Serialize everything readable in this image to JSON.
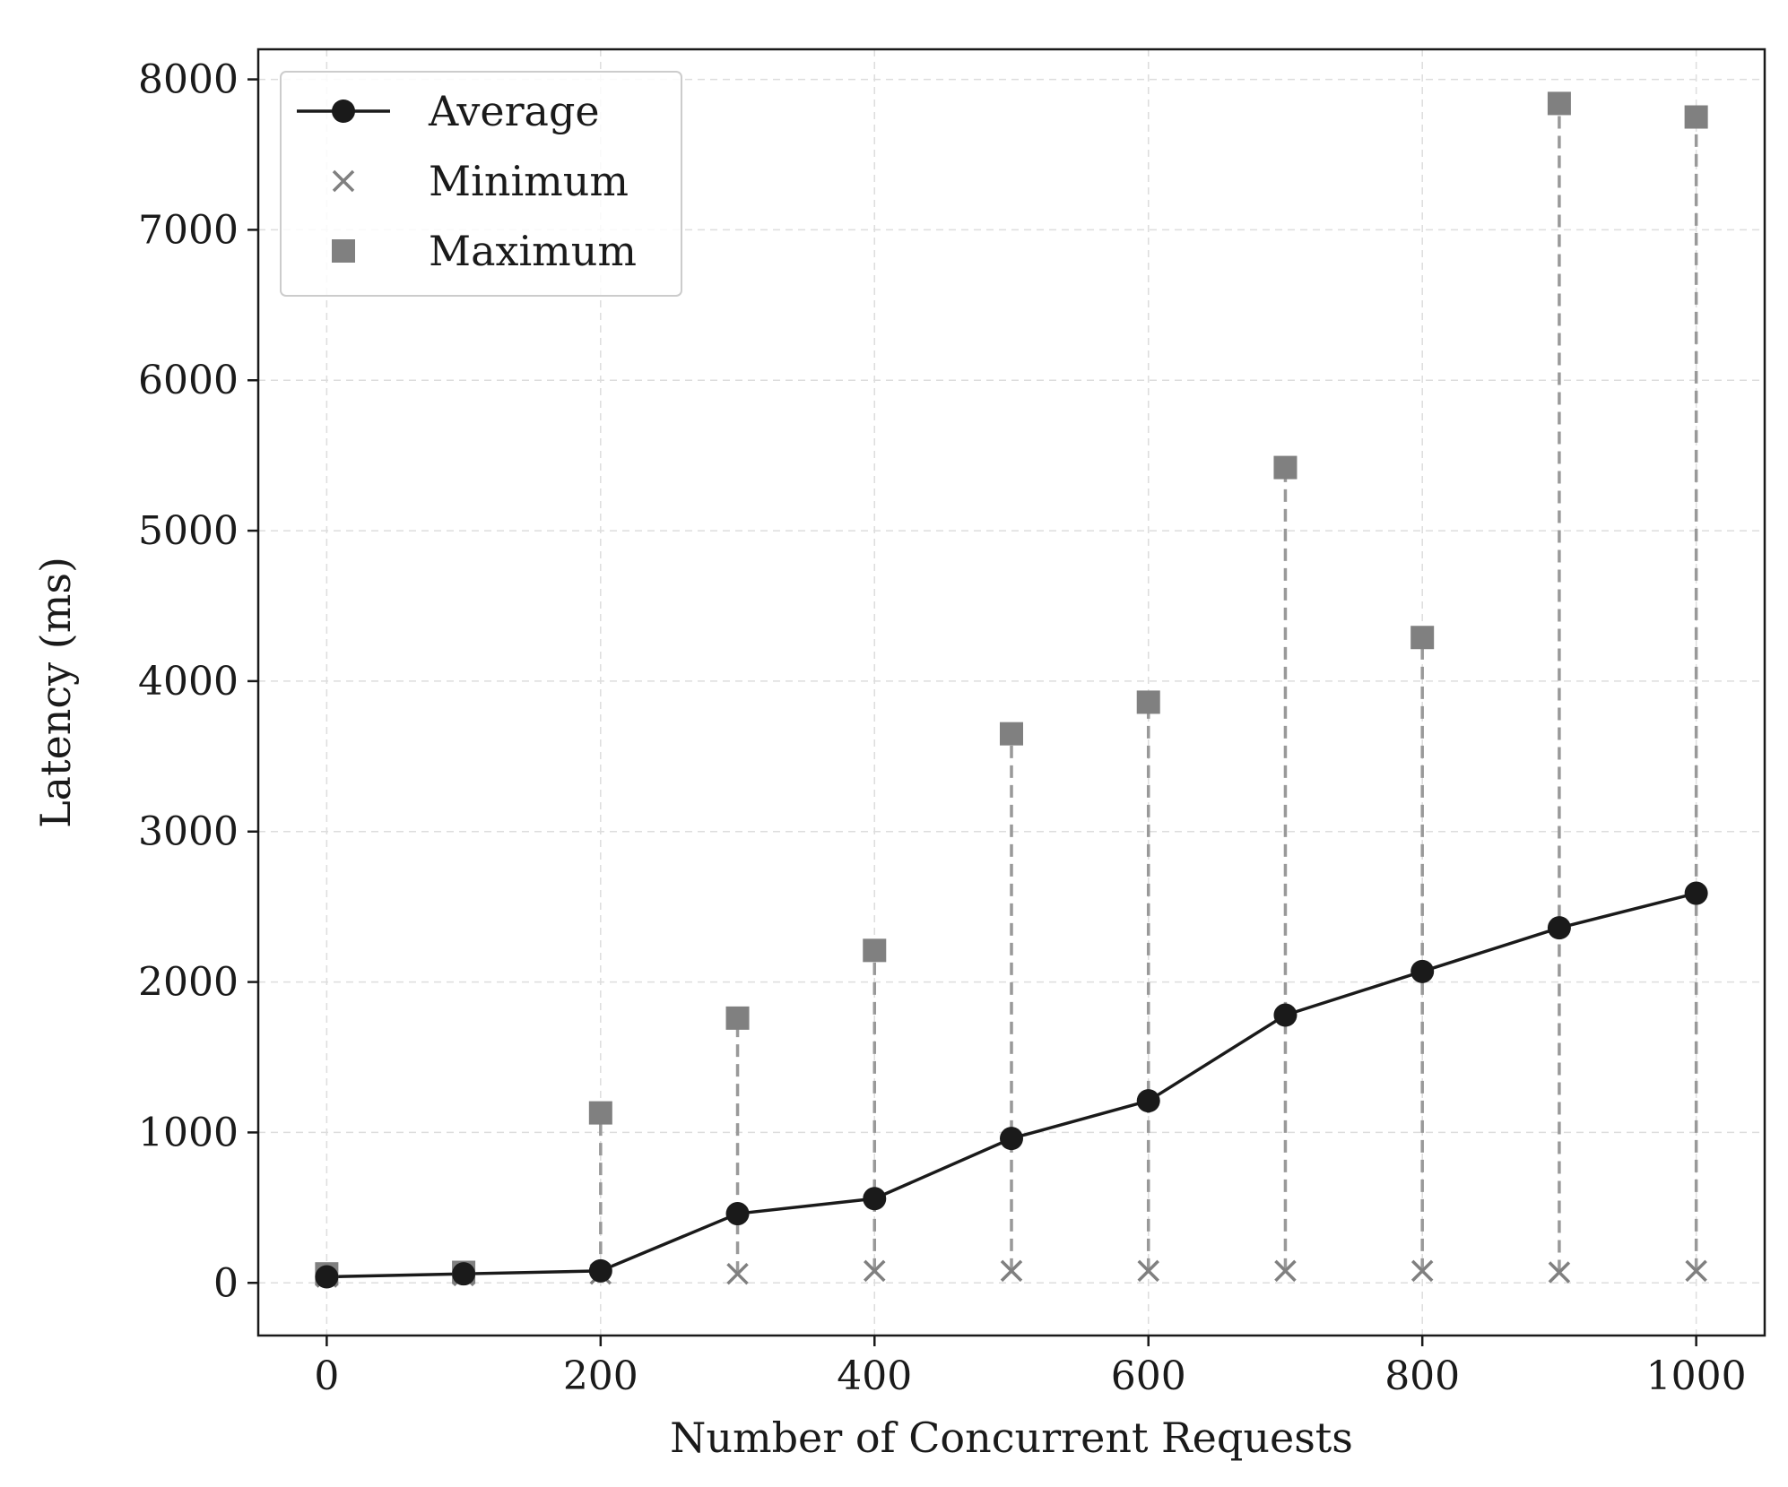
{
  "chart_data": {
    "type": "line",
    "title": "",
    "xlabel": "Number of Concurrent Requests",
    "ylabel": "Latency (ms)",
    "xlim": [
      -50,
      1050
    ],
    "ylim": [
      -350,
      8200
    ],
    "x": [
      0,
      100,
      200,
      300,
      400,
      500,
      600,
      700,
      800,
      900,
      1000
    ],
    "xticks": [
      0,
      200,
      400,
      600,
      800,
      1000
    ],
    "xtick_labels": [
      "0",
      "200",
      "400",
      "600",
      "800",
      "1000"
    ],
    "yticks": [
      0,
      1000,
      2000,
      3000,
      4000,
      5000,
      6000,
      7000,
      8000
    ],
    "ytick_labels": [
      "0",
      "1000",
      "2000",
      "3000",
      "4000",
      "5000",
      "6000",
      "7000",
      "8000"
    ],
    "grid": true,
    "legend_position": "top-left",
    "series": [
      {
        "name": "Average",
        "marker": "circle",
        "line": "solid",
        "color": "#1a1a1a",
        "values": [
          40,
          60,
          80,
          460,
          560,
          960,
          1210,
          1780,
          2070,
          2360,
          2590
        ]
      },
      {
        "name": "Minimum",
        "marker": "x",
        "line": "none",
        "color": "#808080",
        "values": [
          40,
          50,
          60,
          60,
          80,
          80,
          80,
          80,
          80,
          70,
          80
        ]
      },
      {
        "name": "Maximum",
        "marker": "square",
        "line": "none",
        "color": "#808080",
        "values": [
          60,
          70,
          1130,
          1760,
          2210,
          3650,
          3860,
          5420,
          4290,
          7840,
          7750
        ]
      }
    ],
    "range_lines": {
      "style": "dashed",
      "color": "#999999",
      "from_series": "Minimum",
      "to_series": "Maximum"
    }
  }
}
